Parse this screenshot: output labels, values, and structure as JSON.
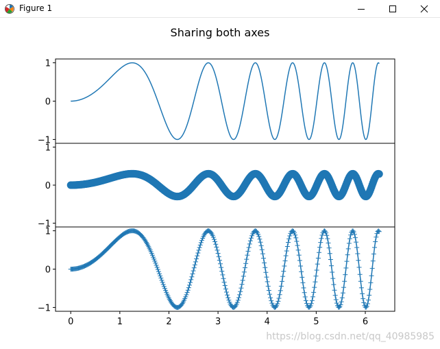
{
  "window": {
    "title": "Figure 1",
    "icons": {
      "app": "matplotlib-logo-icon",
      "minimize": "minimize-icon",
      "maximize": "maximize-icon",
      "close": "close-icon"
    }
  },
  "figure": {
    "suptitle": "Sharing both axes",
    "watermark": "https://blog.csdn.net/qq_40985985"
  },
  "chart_data": {
    "type": "line",
    "title": "Sharing both axes",
    "shared_x": true,
    "shared_y": true,
    "xlim": [
      -0.31,
      6.6
    ],
    "ylim": [
      -1.1,
      1.1
    ],
    "x_ticks": [
      0,
      1,
      2,
      3,
      4,
      5,
      6
    ],
    "y_ticks": [
      -1,
      0,
      1
    ],
    "grid": false,
    "subplots": [
      {
        "name": "",
        "function": "y = sin(x^2)",
        "x_range": [
          0,
          6.283
        ],
        "style": "line",
        "marker": "none",
        "color": "#1f77b4"
      },
      {
        "name": "",
        "function": "y = 0.3 * sin(x^2)",
        "x_range": [
          0,
          6.283
        ],
        "style": "markers",
        "marker": "o",
        "color": "#1f77b4"
      },
      {
        "name": "",
        "function": "y = sin(x^2)",
        "x_range": [
          0,
          6.283
        ],
        "style": "line+markers",
        "marker": "+",
        "color": "#1f77b4"
      }
    ]
  }
}
